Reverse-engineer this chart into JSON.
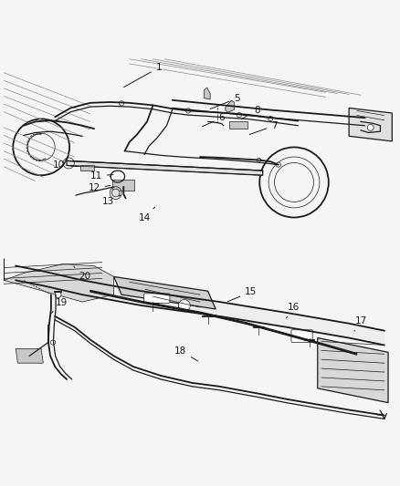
{
  "bg_color": "#f5f5f5",
  "line_color": "#1a1a1a",
  "gray_fill": "#c8c8c8",
  "light_gray": "#e0e0e0",
  "fig_width": 4.38,
  "fig_height": 5.33,
  "dpi": 100,
  "top_labels": {
    "1": [
      0.395,
      0.948,
      0.3,
      0.895
    ],
    "5": [
      0.595,
      0.87,
      0.52,
      0.84
    ],
    "6": [
      0.555,
      0.82,
      0.5,
      0.795
    ],
    "7": [
      0.69,
      0.8,
      0.62,
      0.775
    ],
    "8": [
      0.645,
      0.84,
      0.6,
      0.813
    ],
    "10": [
      0.14,
      0.7,
      0.195,
      0.695
    ],
    "11": [
      0.235,
      0.672,
      0.285,
      0.675
    ],
    "12": [
      0.23,
      0.64,
      0.278,
      0.648
    ],
    "13": [
      0.265,
      0.607,
      0.298,
      0.622
    ],
    "14": [
      0.36,
      0.565,
      0.385,
      0.592
    ]
  },
  "bottom_labels": {
    "15": [
      0.63,
      0.375,
      0.565,
      0.348
    ],
    "16": [
      0.738,
      0.335,
      0.72,
      0.308
    ],
    "17": [
      0.912,
      0.3,
      0.89,
      0.27
    ],
    "18": [
      0.45,
      0.225,
      0.5,
      0.195
    ],
    "19": [
      0.148,
      0.348,
      0.115,
      0.315
    ],
    "20": [
      0.205,
      0.415,
      0.178,
      0.44
    ]
  }
}
